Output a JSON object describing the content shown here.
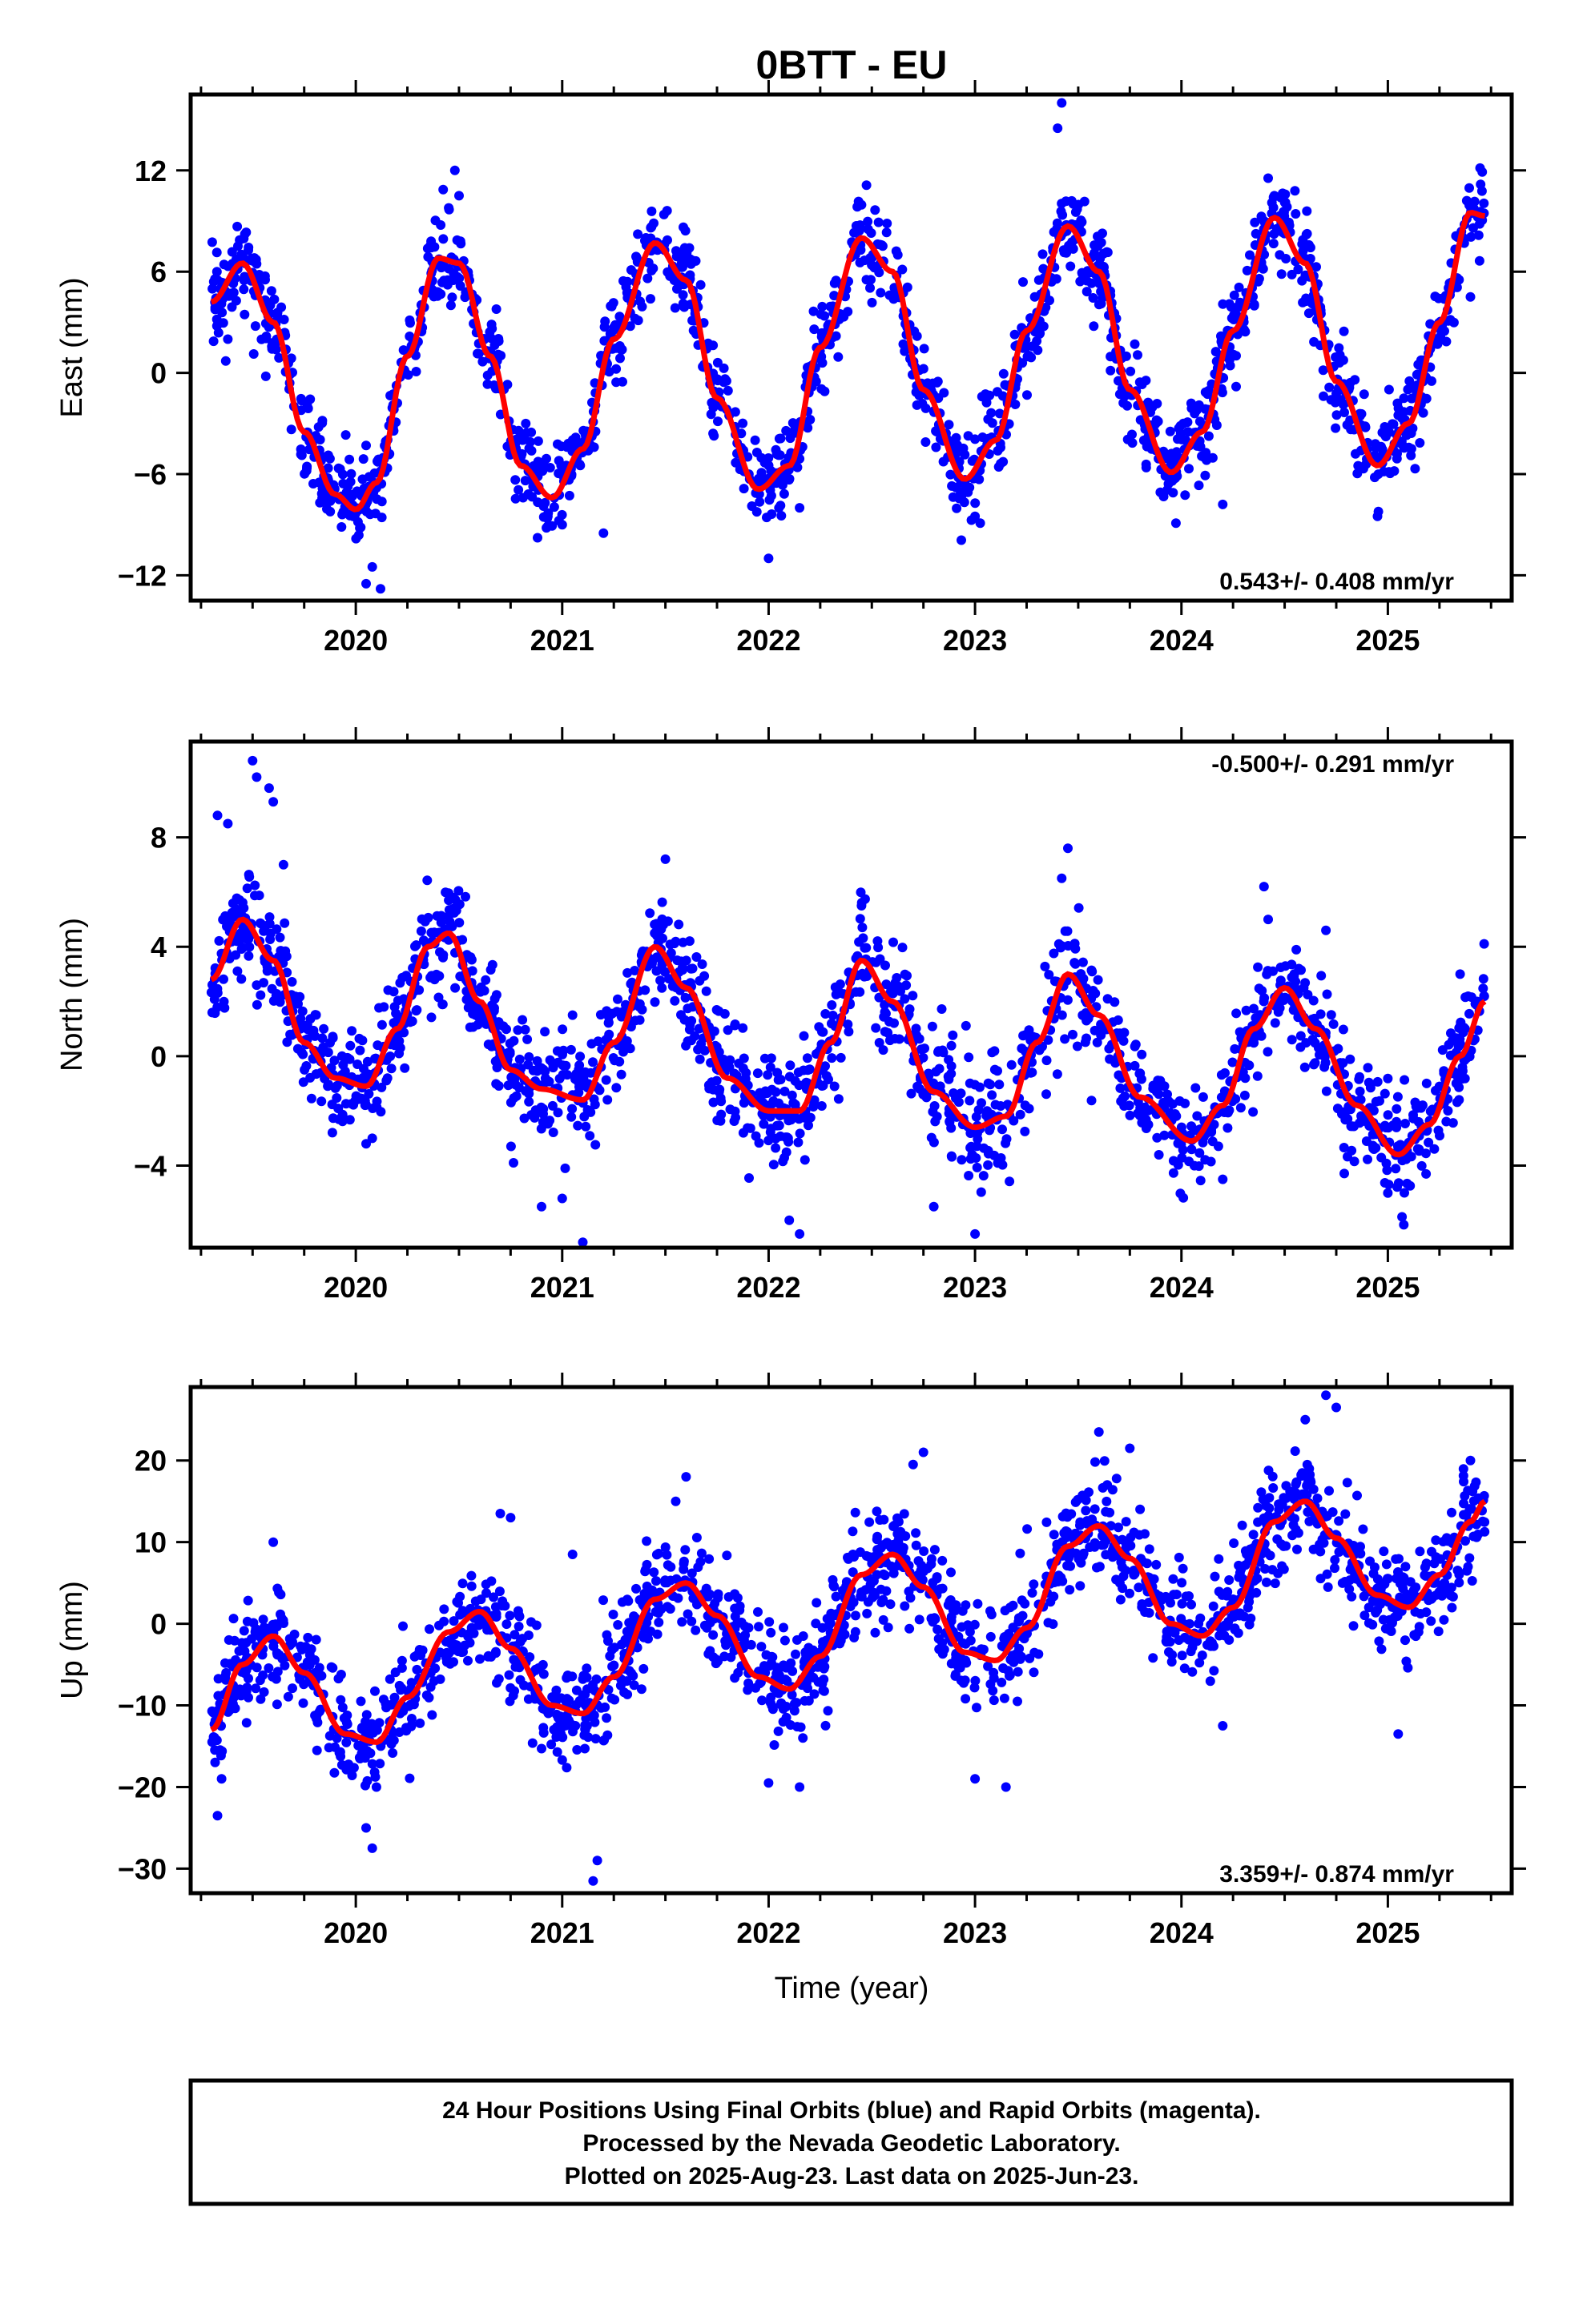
{
  "title": "0BTT - EU",
  "xlabel": "Time (year)",
  "footer": {
    "line1": "24 Hour Positions Using Final Orbits (blue) and Rapid Orbits (magenta).",
    "line2": "Processed by the Nevada Geodetic Laboratory.",
    "line3": "Plotted on 2025-Aug-23. Last data on 2025-Jun-23."
  },
  "colors": {
    "points": "#0000ff",
    "fit": "#ff0000",
    "frame": "#000000"
  },
  "chart_data": [
    {
      "type": "scatter",
      "component": "east",
      "ylabel": "East (mm)",
      "rate_label": "0.543+/- 0.408 mm/yr",
      "rate_position": "bottom-right",
      "xlim": [
        2019.2,
        2025.6
      ],
      "ylim": [
        -13.5,
        16.5
      ],
      "x_ticks": [
        "2020",
        "2021",
        "2022",
        "2023",
        "2024",
        "2025"
      ],
      "y_ticks": [
        -12,
        -6,
        0,
        6,
        12
      ],
      "fit_x": [
        2019.3,
        2019.45,
        2019.6,
        2019.75,
        2019.9,
        2020.0,
        2020.1,
        2020.25,
        2020.4,
        2020.5,
        2020.65,
        2020.8,
        2020.95,
        2021.1,
        2021.25,
        2021.45,
        2021.6,
        2021.75,
        2021.95,
        2022.1,
        2022.25,
        2022.45,
        2022.6,
        2022.75,
        2022.95,
        2023.1,
        2023.25,
        2023.45,
        2023.6,
        2023.75,
        2023.95,
        2024.1,
        2024.25,
        2024.45,
        2024.6,
        2024.75,
        2024.95,
        2025.1,
        2025.25,
        2025.4,
        2025.47
      ],
      "fit_y": [
        4.2,
        6.5,
        3.0,
        -3.5,
        -7.2,
        -8.1,
        -6.5,
        1.0,
        6.8,
        6.5,
        1.0,
        -5.5,
        -7.4,
        -4.5,
        2.0,
        7.7,
        5.5,
        -1.5,
        -6.9,
        -5.5,
        1.5,
        8.0,
        6.0,
        -1.0,
        -6.3,
        -4.0,
        2.5,
        8.7,
        6.0,
        -1.0,
        -5.9,
        -3.5,
        2.5,
        9.2,
        6.5,
        -0.5,
        -5.5,
        -3.0,
        3.0,
        9.5,
        9.3
      ],
      "points": {
        "count": 1700,
        "noise_mm": 1.3,
        "outliers": [
          [
            2019.33,
            5.5
          ],
          [
            2019.38,
            2.0
          ],
          [
            2020.05,
            -12.5
          ],
          [
            2020.08,
            -11.5
          ],
          [
            2020.12,
            -12.8
          ],
          [
            2020.5,
            10.5
          ],
          [
            2020.48,
            12.0
          ],
          [
            2021.0,
            -9.0
          ],
          [
            2021.2,
            -9.5
          ],
          [
            2022.0,
            -11.0
          ],
          [
            2022.15,
            -8.0
          ],
          [
            2023.0,
            -8.5
          ],
          [
            2023.4,
            14.5
          ],
          [
            2023.42,
            16.0
          ],
          [
            2024.2,
            -7.8
          ],
          [
            2024.45,
            10.5
          ],
          [
            2024.95,
            -8.5
          ],
          [
            2025.4,
            4.5
          ]
        ]
      }
    },
    {
      "type": "scatter",
      "component": "north",
      "ylabel": "North (mm)",
      "rate_label": "-0.500+/- 0.291 mm/yr",
      "rate_position": "top-right",
      "xlim": [
        2019.2,
        2025.6
      ],
      "ylim": [
        -7.0,
        11.5
      ],
      "x_ticks": [
        "2020",
        "2021",
        "2022",
        "2023",
        "2024",
        "2025"
      ],
      "y_ticks": [
        -4,
        0,
        4,
        8
      ],
      "fit_x": [
        2019.3,
        2019.45,
        2019.6,
        2019.75,
        2019.9,
        2020.05,
        2020.2,
        2020.35,
        2020.45,
        2020.6,
        2020.75,
        2020.9,
        2021.1,
        2021.25,
        2021.45,
        2021.6,
        2021.8,
        2022.0,
        2022.15,
        2022.3,
        2022.45,
        2022.6,
        2022.8,
        2023.0,
        2023.15,
        2023.3,
        2023.45,
        2023.6,
        2023.8,
        2024.05,
        2024.2,
        2024.35,
        2024.5,
        2024.65,
        2024.85,
        2025.05,
        2025.2,
        2025.35,
        2025.47
      ],
      "fit_y": [
        2.8,
        5.0,
        3.5,
        0.5,
        -0.8,
        -1.1,
        1.0,
        4.0,
        4.5,
        2.0,
        -0.5,
        -1.2,
        -1.6,
        0.5,
        4.0,
        2.5,
        -0.8,
        -2.0,
        -2.0,
        0.5,
        3.5,
        2.0,
        -1.3,
        -2.6,
        -2.2,
        0.5,
        3.0,
        1.5,
        -1.5,
        -3.1,
        -1.8,
        1.0,
        2.5,
        1.0,
        -1.8,
        -3.6,
        -2.5,
        0.0,
        2.0
      ],
      "points": {
        "count": 1700,
        "noise_mm": 1.0,
        "outliers": [
          [
            2019.33,
            8.8
          ],
          [
            2019.38,
            8.5
          ],
          [
            2019.5,
            10.8
          ],
          [
            2019.52,
            10.2
          ],
          [
            2019.58,
            9.8
          ],
          [
            2019.6,
            9.3
          ],
          [
            2019.65,
            7.0
          ],
          [
            2020.05,
            -3.2
          ],
          [
            2020.08,
            -3.0
          ],
          [
            2020.45,
            5.7
          ],
          [
            2020.9,
            -5.5
          ],
          [
            2021.0,
            -5.2
          ],
          [
            2021.05,
            1.5
          ],
          [
            2021.1,
            -6.8
          ],
          [
            2021.5,
            7.2
          ],
          [
            2022.1,
            -6.0
          ],
          [
            2022.15,
            -6.5
          ],
          [
            2022.45,
            5.5
          ],
          [
            2022.8,
            -5.5
          ],
          [
            2023.0,
            -6.5
          ],
          [
            2023.45,
            7.6
          ],
          [
            2023.42,
            6.5
          ],
          [
            2024.2,
            -4.5
          ],
          [
            2024.4,
            6.2
          ],
          [
            2024.42,
            5.0
          ],
          [
            2024.7,
            4.6
          ],
          [
            2025.0,
            -5.0
          ],
          [
            2025.35,
            3.0
          ]
        ]
      }
    },
    {
      "type": "scatter",
      "component": "up",
      "ylabel": "Up (mm)",
      "rate_label": "3.359+/- 0.874 mm/yr",
      "rate_position": "bottom-right",
      "xlim": [
        2019.2,
        2025.6
      ],
      "ylim": [
        -33,
        29
      ],
      "x_ticks": [
        "2020",
        "2021",
        "2022",
        "2023",
        "2024",
        "2025"
      ],
      "y_ticks": [
        -30,
        -20,
        -10,
        0,
        10,
        20
      ],
      "fit_x": [
        2019.3,
        2019.45,
        2019.6,
        2019.75,
        2019.95,
        2020.1,
        2020.25,
        2020.45,
        2020.6,
        2020.75,
        2020.95,
        2021.1,
        2021.25,
        2021.45,
        2021.6,
        2021.75,
        2021.95,
        2022.1,
        2022.25,
        2022.45,
        2022.6,
        2022.75,
        2022.95,
        2023.1,
        2023.25,
        2023.45,
        2023.6,
        2023.75,
        2023.95,
        2024.1,
        2024.25,
        2024.45,
        2024.6,
        2024.75,
        2024.95,
        2025.1,
        2025.25,
        2025.4,
        2025.47
      ],
      "fit_y": [
        -13.0,
        -5.0,
        -1.5,
        -6.0,
        -13.5,
        -14.5,
        -9.0,
        -1.0,
        1.5,
        -3.0,
        -10.0,
        -11.0,
        -6.5,
        3.0,
        5.0,
        1.0,
        -6.5,
        -8.0,
        -4.0,
        6.0,
        8.5,
        4.5,
        -3.5,
        -4.5,
        -0.5,
        9.5,
        12.0,
        8.0,
        0.0,
        -1.5,
        2.0,
        12.5,
        15.0,
        10.5,
        3.5,
        2.0,
        6.0,
        12.5,
        15.0
      ],
      "points": {
        "count": 1700,
        "noise_mm": 3.2,
        "outliers": [
          [
            2019.33,
            -23.5
          ],
          [
            2019.35,
            -19.0
          ],
          [
            2019.6,
            10.0
          ],
          [
            2020.05,
            -25.0
          ],
          [
            2020.08,
            -27.5
          ],
          [
            2020.1,
            -20.0
          ],
          [
            2020.7,
            13.5
          ],
          [
            2020.75,
            13.0
          ],
          [
            2021.05,
            8.5
          ],
          [
            2021.15,
            -31.5
          ],
          [
            2021.17,
            -29.0
          ],
          [
            2021.6,
            18.0
          ],
          [
            2021.55,
            15.0
          ],
          [
            2022.0,
            -19.5
          ],
          [
            2022.15,
            -20.0
          ],
          [
            2022.75,
            21.0
          ],
          [
            2022.7,
            19.5
          ],
          [
            2023.0,
            -19.0
          ],
          [
            2023.15,
            -20.0
          ],
          [
            2023.6,
            23.5
          ],
          [
            2023.75,
            21.5
          ],
          [
            2024.2,
            -12.5
          ],
          [
            2024.7,
            28.0
          ],
          [
            2024.75,
            26.5
          ],
          [
            2024.6,
            25.0
          ],
          [
            2025.05,
            -13.5
          ],
          [
            2025.4,
            20.0
          ]
        ]
      }
    }
  ]
}
